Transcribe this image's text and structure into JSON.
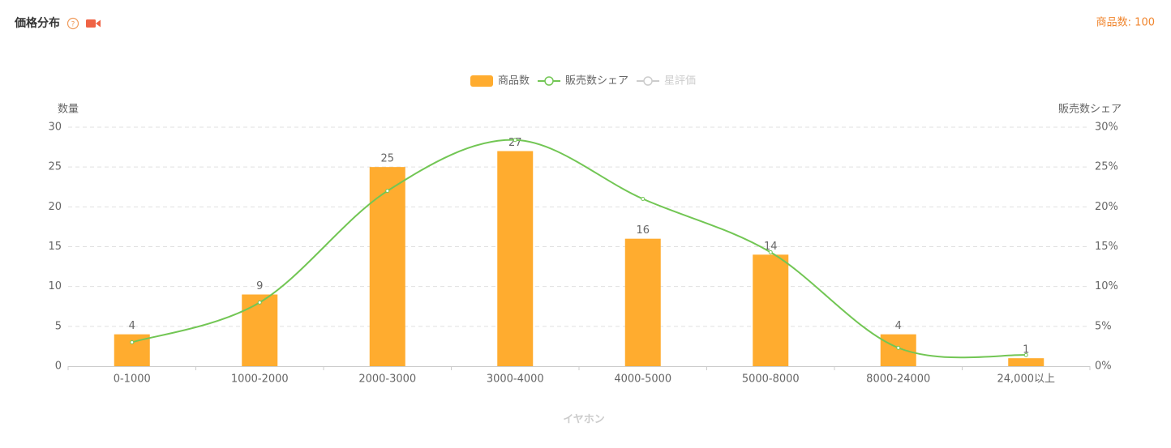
{
  "chart_data": {
    "type": "bar",
    "title": "価格分布",
    "annotation": "商品数: 100",
    "xlabel": "イヤホン",
    "ylabel": "数量",
    "y2label": "販売数シェア",
    "categories": [
      "0-1000",
      "1000-2000",
      "2000-3000",
      "3000-4000",
      "4000-5000",
      "5000-8000",
      "8000-24000",
      "24,000以上"
    ],
    "series": [
      {
        "name": "商品数",
        "type": "bar",
        "color": "#ffac2f",
        "values": [
          4,
          9,
          25,
          27,
          16,
          14,
          4,
          1
        ]
      },
      {
        "name": "販売数シェア",
        "type": "line",
        "axis": "y2",
        "color": "#72c654",
        "values": [
          3,
          8,
          22,
          28.4,
          21,
          14.3,
          2.3,
          1.4
        ]
      },
      {
        "name": "星評価",
        "type": "line",
        "color": "#cccccc",
        "hidden": true
      }
    ],
    "ylim": [
      0,
      30
    ],
    "yticks": [
      0,
      5,
      10,
      15,
      20,
      25,
      30
    ],
    "y2lim": [
      0,
      30
    ],
    "y2ticks": [
      {
        "value": 0,
        "label": "0%"
      },
      {
        "value": 5,
        "label": "5%"
      },
      {
        "value": 10,
        "label": "10%"
      },
      {
        "value": 15,
        "label": "15%"
      },
      {
        "value": 20,
        "label": "20%"
      },
      {
        "value": 25,
        "label": "25%"
      },
      {
        "value": 30,
        "label": "30%"
      }
    ],
    "grid": true,
    "legend": "top"
  }
}
